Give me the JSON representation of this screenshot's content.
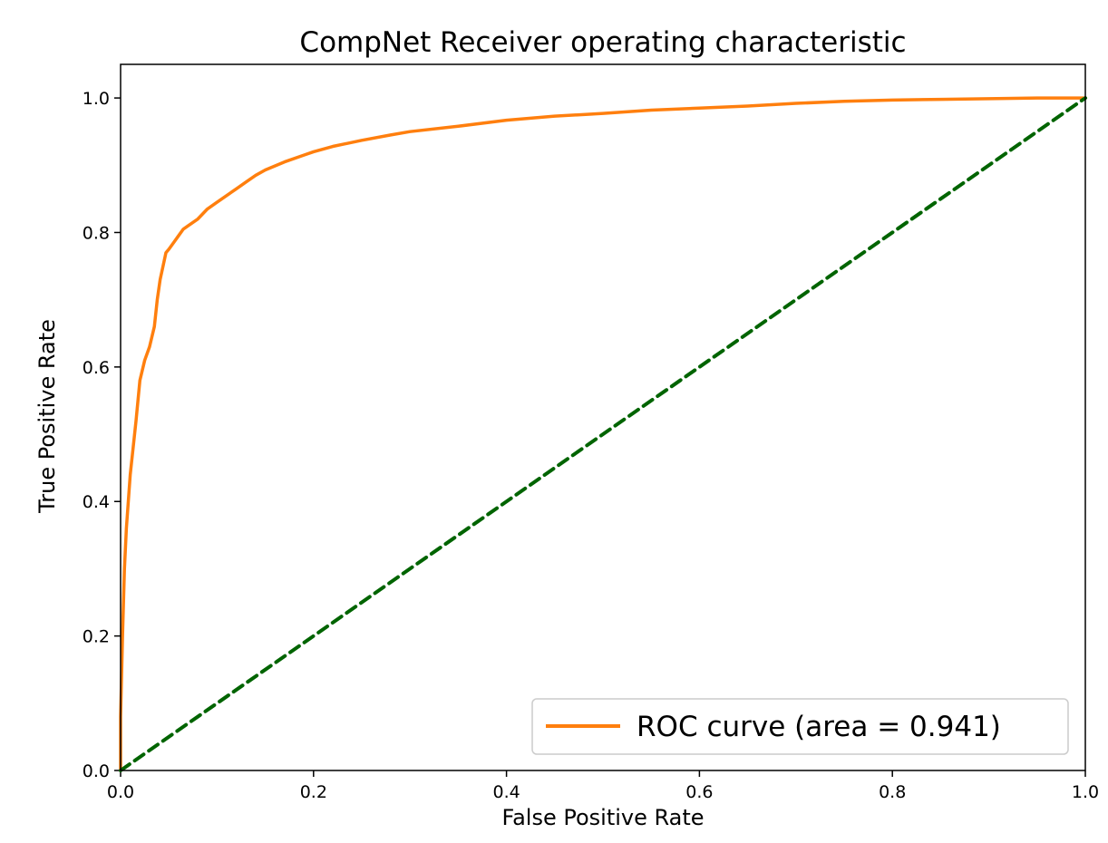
{
  "chart_data": {
    "type": "line",
    "title": "CompNet Receiver operating characteristic",
    "xlabel": "False Positive Rate",
    "ylabel": "True Positive Rate",
    "xlim": [
      0.0,
      1.0
    ],
    "ylim": [
      0.0,
      1.05
    ],
    "xticks": [
      0.0,
      0.2,
      0.4,
      0.6,
      0.8,
      1.0
    ],
    "yticks": [
      0.0,
      0.2,
      0.4,
      0.6,
      0.8,
      1.0
    ],
    "xtick_labels": [
      "0.0",
      "0.2",
      "0.4",
      "0.6",
      "0.8",
      "1.0"
    ],
    "ytick_labels": [
      "0.0",
      "0.2",
      "0.4",
      "0.6",
      "0.8",
      "1.0"
    ],
    "grid": false,
    "legend_position": "lower-right",
    "series": [
      {
        "name": "ROC curve (area = 0.941)",
        "color": "#ff7f0e",
        "style": "solid",
        "x": [
          0.0,
          0.0,
          0.002,
          0.004,
          0.006,
          0.008,
          0.01,
          0.013,
          0.016,
          0.02,
          0.025,
          0.03,
          0.035,
          0.038,
          0.041,
          0.044,
          0.047,
          0.05,
          0.055,
          0.06,
          0.065,
          0.07,
          0.08,
          0.09,
          0.1,
          0.11,
          0.12,
          0.13,
          0.14,
          0.15,
          0.17,
          0.19,
          0.2,
          0.22,
          0.25,
          0.28,
          0.3,
          0.35,
          0.4,
          0.45,
          0.5,
          0.55,
          0.6,
          0.65,
          0.7,
          0.75,
          0.8,
          0.85,
          0.9,
          0.95,
          1.0
        ],
        "y": [
          0.0,
          0.08,
          0.2,
          0.3,
          0.36,
          0.4,
          0.44,
          0.48,
          0.52,
          0.58,
          0.61,
          0.63,
          0.66,
          0.7,
          0.73,
          0.75,
          0.77,
          0.775,
          0.785,
          0.795,
          0.805,
          0.81,
          0.82,
          0.835,
          0.845,
          0.855,
          0.865,
          0.875,
          0.885,
          0.893,
          0.905,
          0.915,
          0.92,
          0.928,
          0.937,
          0.945,
          0.95,
          0.958,
          0.967,
          0.973,
          0.977,
          0.982,
          0.985,
          0.988,
          0.992,
          0.995,
          0.997,
          0.998,
          0.999,
          1.0,
          1.0
        ]
      },
      {
        "color": "#006400",
        "style": "dashed",
        "x": [
          0.0,
          1.0
        ],
        "y": [
          0.0,
          1.0
        ]
      }
    ]
  }
}
